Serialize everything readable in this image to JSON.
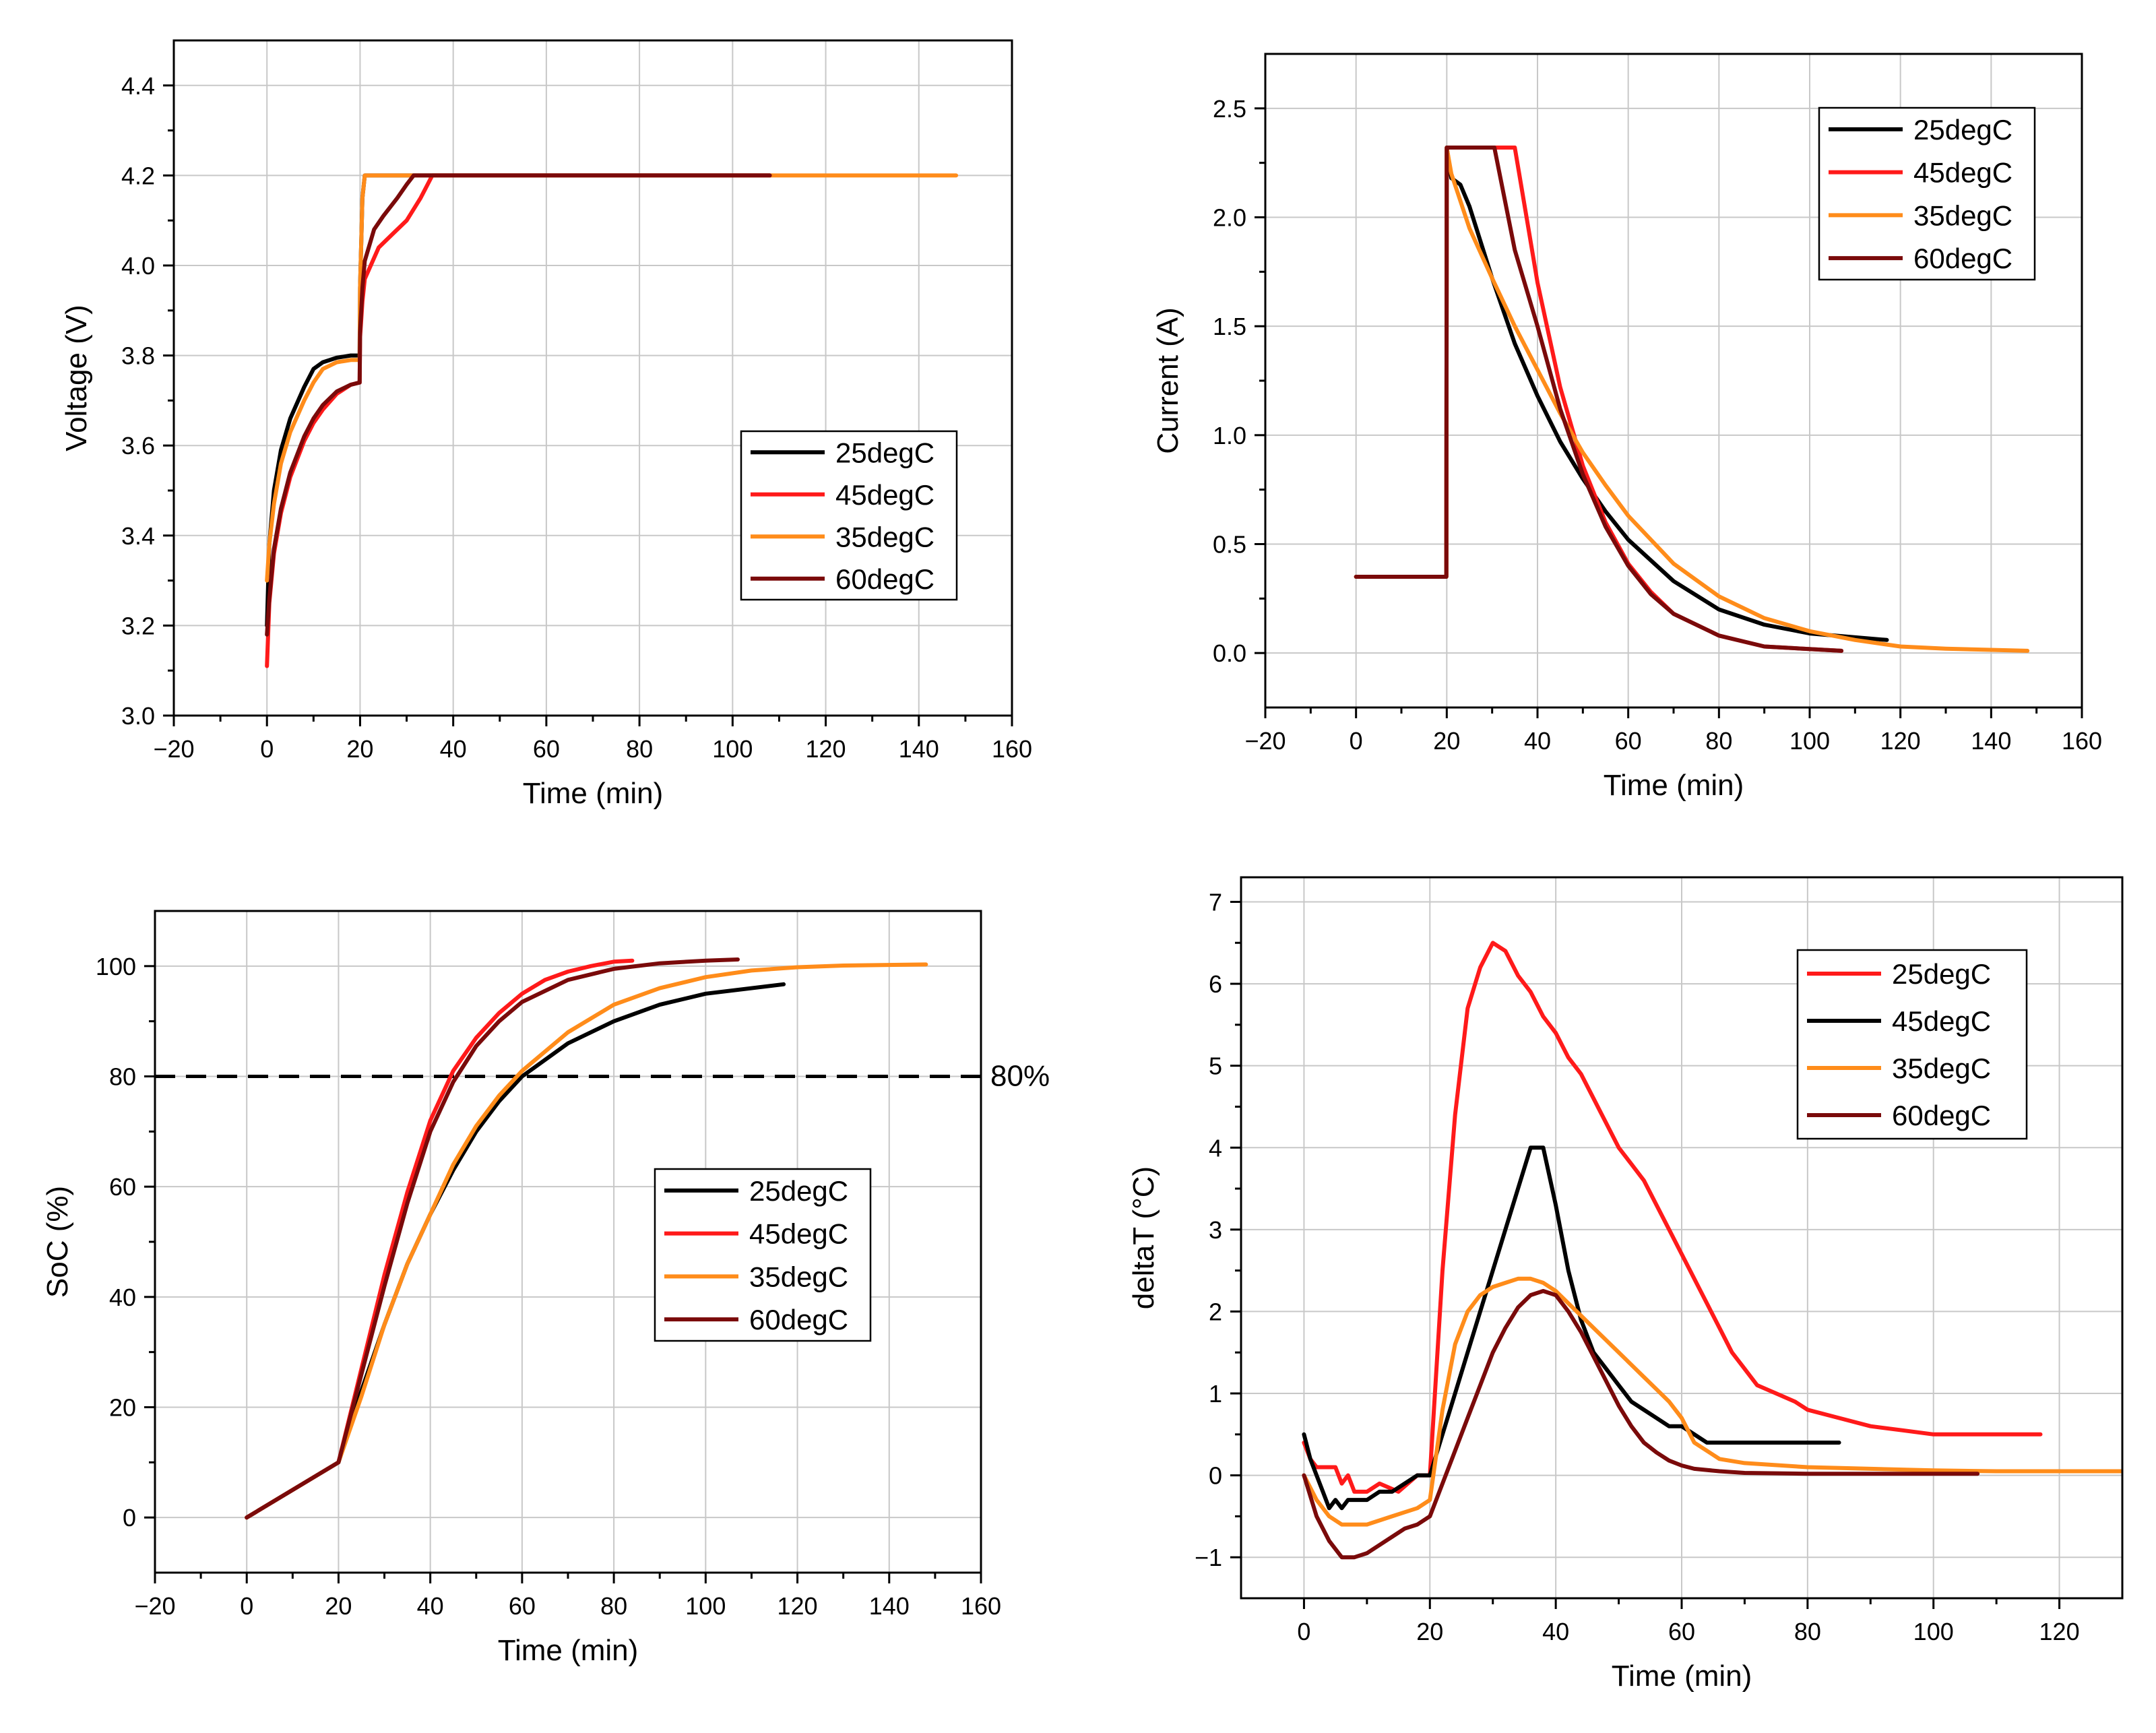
{
  "chart_data": [
    {
      "type": "line",
      "xlabel": "Time (min)",
      "ylabel": "Voltage (V)",
      "xlim": [
        -20,
        160
      ],
      "ylim": [
        3.0,
        4.5
      ],
      "xticks": [
        -20,
        0,
        20,
        40,
        60,
        80,
        100,
        120,
        140,
        160
      ],
      "xtick_labels": [
        "−20",
        "0",
        "20",
        "40",
        "60",
        "80",
        "100",
        "120",
        "140",
        "160"
      ],
      "yticks": [
        3.0,
        3.2,
        3.4,
        3.6,
        3.8,
        4.0,
        4.2,
        4.4
      ],
      "ytick_labels": [
        "3.0",
        "3.2",
        "3.4",
        "3.6",
        "3.8",
        "4.0",
        "4.2",
        "4.4"
      ],
      "grid": true,
      "legend_position": "center-right",
      "series": [
        {
          "name": "25degC",
          "color": "#000000",
          "x": [
            0,
            0.5,
            1.5,
            3,
            5,
            8,
            10,
            12,
            15,
            18,
            19.9,
            20,
            20.5,
            21,
            21.5,
            108
          ],
          "y": [
            3.2,
            3.38,
            3.5,
            3.59,
            3.66,
            3.73,
            3.77,
            3.785,
            3.795,
            3.8,
            3.8,
            3.95,
            4.15,
            4.2,
            4.2,
            4.2
          ]
        },
        {
          "name": "45degC",
          "color": "#ff1a1a",
          "x": [
            0,
            0.5,
            1.5,
            3,
            5,
            8,
            10,
            12,
            15,
            18,
            19.9,
            20,
            20.5,
            21,
            24,
            27,
            30,
            33,
            35.5,
            108
          ],
          "y": [
            3.11,
            3.25,
            3.36,
            3.45,
            3.53,
            3.61,
            3.65,
            3.68,
            3.715,
            3.735,
            3.74,
            3.84,
            3.92,
            3.97,
            4.04,
            4.07,
            4.1,
            4.15,
            4.2,
            4.2
          ]
        },
        {
          "name": "35degC",
          "color": "#ff8c1a",
          "x": [
            0,
            0.5,
            1.5,
            3,
            5,
            8,
            10,
            12,
            15,
            18,
            19.9,
            20,
            20.5,
            21,
            21.5,
            148
          ],
          "y": [
            3.3,
            3.38,
            3.47,
            3.56,
            3.63,
            3.7,
            3.74,
            3.77,
            3.785,
            3.79,
            3.79,
            3.95,
            4.15,
            4.2,
            4.2,
            4.2
          ]
        },
        {
          "name": "60degC",
          "color": "#7a0a0a",
          "x": [
            0,
            0.5,
            1.5,
            3,
            5,
            8,
            10,
            12,
            15,
            18,
            19.9,
            20,
            20.5,
            21,
            23,
            25,
            28,
            30,
            31.5,
            108
          ],
          "y": [
            3.18,
            3.26,
            3.37,
            3.46,
            3.54,
            3.62,
            3.66,
            3.69,
            3.72,
            3.735,
            3.74,
            3.85,
            3.95,
            4.01,
            4.08,
            4.11,
            4.15,
            4.18,
            4.2,
            4.2
          ]
        }
      ]
    },
    {
      "type": "line",
      "xlabel": "Time (min)",
      "ylabel": "Current (A)",
      "xlim": [
        -20,
        160
      ],
      "ylim": [
        -0.25,
        2.75
      ],
      "xticks": [
        -20,
        0,
        20,
        40,
        60,
        80,
        100,
        120,
        140,
        160
      ],
      "xtick_labels": [
        "−20",
        "0",
        "20",
        "40",
        "60",
        "80",
        "100",
        "120",
        "140",
        "160"
      ],
      "yticks": [
        0.0,
        0.5,
        1.0,
        1.5,
        2.0,
        2.5
      ],
      "ytick_labels": [
        "0.0",
        "0.5",
        "1.0",
        "1.5",
        "2.0",
        "2.5"
      ],
      "grid": true,
      "legend_position": "top-right",
      "series": [
        {
          "name": "25degC",
          "color": "#000000",
          "x": [
            0,
            19.9,
            20,
            21,
            23,
            25,
            30,
            35,
            40,
            45,
            50,
            55,
            60,
            70,
            80,
            90,
            100,
            117
          ],
          "y": [
            0.35,
            0.35,
            2.32,
            2.18,
            2.15,
            2.05,
            1.72,
            1.42,
            1.18,
            0.97,
            0.8,
            0.65,
            0.52,
            0.33,
            0.2,
            0.13,
            0.09,
            0.06
          ]
        },
        {
          "name": "45degC",
          "color": "#ff1a1a",
          "x": [
            0,
            19.9,
            20,
            35,
            38,
            40,
            45,
            50,
            55,
            60,
            65,
            70,
            80,
            90,
            107
          ],
          "y": [
            0.35,
            0.35,
            2.32,
            2.32,
            1.95,
            1.7,
            1.22,
            0.86,
            0.6,
            0.41,
            0.28,
            0.18,
            0.08,
            0.03,
            0.01
          ]
        },
        {
          "name": "35degC",
          "color": "#ff8c1a",
          "x": [
            0,
            19.9,
            20,
            21,
            25,
            30,
            35,
            40,
            45,
            50,
            55,
            60,
            70,
            80,
            90,
            100,
            110,
            120,
            130,
            148
          ],
          "y": [
            0.35,
            0.35,
            2.32,
            2.2,
            1.95,
            1.72,
            1.5,
            1.3,
            1.1,
            0.92,
            0.77,
            0.63,
            0.41,
            0.26,
            0.16,
            0.1,
            0.06,
            0.03,
            0.02,
            0.01
          ]
        },
        {
          "name": "60degC",
          "color": "#7a0a0a",
          "x": [
            0,
            19.9,
            20,
            30.5,
            35,
            40,
            45,
            50,
            55,
            60,
            65,
            70,
            80,
            90,
            107
          ],
          "y": [
            0.35,
            0.35,
            2.32,
            2.32,
            1.85,
            1.5,
            1.12,
            0.82,
            0.58,
            0.4,
            0.27,
            0.18,
            0.08,
            0.03,
            0.01
          ]
        }
      ]
    },
    {
      "type": "line",
      "xlabel": "Time (min)",
      "ylabel": "SoC (%)",
      "xlim": [
        -20,
        160
      ],
      "ylim": [
        -10,
        110
      ],
      "xticks": [
        -20,
        0,
        20,
        40,
        60,
        80,
        100,
        120,
        140,
        160
      ],
      "xtick_labels": [
        "−20",
        "0",
        "20",
        "40",
        "60",
        "80",
        "100",
        "120",
        "140",
        "160"
      ],
      "yticks": [
        0,
        20,
        40,
        60,
        80,
        100
      ],
      "ytick_labels": [
        "0",
        "20",
        "40",
        "60",
        "80",
        "100"
      ],
      "grid": true,
      "legend_position": "center-right",
      "reference_line": {
        "y": 80,
        "style": "dashed",
        "label": "80%"
      },
      "series": [
        {
          "name": "25degC",
          "color": "#000000",
          "x": [
            0,
            20,
            25,
            30,
            35,
            40,
            45,
            50,
            55,
            60,
            70,
            80,
            90,
            100,
            117
          ],
          "y": [
            0,
            10,
            23,
            35,
            46,
            55,
            63,
            70,
            75.5,
            80,
            86,
            90,
            93,
            95,
            96.7
          ]
        },
        {
          "name": "45degC",
          "color": "#ff1a1a",
          "x": [
            0,
            20,
            25,
            30,
            35,
            40,
            45,
            50,
            55,
            60,
            65,
            70,
            75,
            80,
            84
          ],
          "y": [
            0,
            10,
            27,
            44,
            59,
            72,
            81,
            87,
            91.5,
            95,
            97.5,
            99,
            100,
            100.8,
            101
          ]
        },
        {
          "name": "35degC",
          "color": "#ff8c1a",
          "x": [
            0,
            20,
            25,
            30,
            35,
            40,
            45,
            50,
            55,
            60,
            70,
            80,
            90,
            100,
            110,
            120,
            130,
            148
          ],
          "y": [
            0,
            10,
            22,
            35,
            46,
            55,
            64,
            71,
            76.5,
            81,
            88,
            93,
            96,
            98,
            99.2,
            99.8,
            100.1,
            100.3
          ]
        },
        {
          "name": "60degC",
          "color": "#7a0a0a",
          "x": [
            0,
            20,
            25,
            30,
            35,
            40,
            45,
            50,
            55,
            60,
            70,
            80,
            90,
            100,
            107
          ],
          "y": [
            0,
            10,
            26,
            42,
            57,
            70,
            79,
            85.5,
            90,
            93.5,
            97.5,
            99.5,
            100.5,
            101,
            101.2
          ]
        }
      ]
    },
    {
      "type": "line",
      "xlabel": "Time (min)",
      "ylabel": "deltaT (°C)",
      "xlim": [
        -10,
        130
      ],
      "ylim": [
        -1.5,
        7.3
      ],
      "xticks": [
        0,
        20,
        40,
        60,
        80,
        100,
        120
      ],
      "xtick_labels": [
        "0",
        "20",
        "40",
        "60",
        "80",
        "100",
        "120"
      ],
      "yticks": [
        -1,
        0,
        1,
        2,
        3,
        4,
        5,
        6,
        7
      ],
      "ytick_labels": [
        "−1",
        "0",
        "1",
        "2",
        "3",
        "4",
        "5",
        "6",
        "7"
      ],
      "grid": true,
      "legend_position": "top-right",
      "series": [
        {
          "name": "25degC",
          "color": "#ff1a1a",
          "x": [
            0,
            1,
            2,
            5,
            6,
            7,
            8,
            10,
            12,
            15,
            18,
            20,
            22,
            24,
            26,
            28,
            30,
            32,
            34,
            36,
            38,
            40,
            42,
            44,
            46,
            48,
            50,
            52,
            54,
            56,
            58,
            60,
            62,
            64,
            66,
            68,
            70,
            72,
            75,
            78,
            80,
            85,
            90,
            95,
            100,
            105,
            110,
            117
          ],
          "y": [
            0.4,
            0.2,
            0.1,
            0.1,
            -0.1,
            0,
            -0.2,
            -0.2,
            -0.1,
            -0.2,
            0,
            0,
            2.5,
            4.4,
            5.7,
            6.2,
            6.5,
            6.4,
            6.1,
            5.9,
            5.6,
            5.4,
            5.1,
            4.9,
            4.6,
            4.3,
            4.0,
            3.8,
            3.6,
            3.3,
            3.0,
            2.7,
            2.4,
            2.1,
            1.8,
            1.5,
            1.3,
            1.1,
            1.0,
            0.9,
            0.8,
            0.7,
            0.6,
            0.55,
            0.5,
            0.5,
            0.5,
            0.5
          ]
        },
        {
          "name": "45degC",
          "color": "#000000",
          "x": [
            0,
            1,
            2,
            3,
            4,
            5,
            6,
            7,
            8,
            10,
            12,
            14,
            16,
            18,
            20,
            22,
            24,
            26,
            28,
            30,
            32,
            34,
            36,
            38,
            40,
            42,
            44,
            46,
            48,
            50,
            52,
            54,
            56,
            58,
            60,
            62,
            64,
            70,
            85
          ],
          "y": [
            0.5,
            0.2,
            0,
            -0.2,
            -0.4,
            -0.3,
            -0.4,
            -0.3,
            -0.3,
            -0.3,
            -0.2,
            -0.2,
            -0.1,
            0,
            0,
            0.5,
            1.0,
            1.5,
            2.0,
            2.5,
            3.0,
            3.5,
            4.0,
            4.0,
            3.3,
            2.5,
            1.9,
            1.5,
            1.3,
            1.1,
            0.9,
            0.8,
            0.7,
            0.6,
            0.6,
            0.5,
            0.4,
            0.4,
            0.4
          ]
        },
        {
          "name": "35degC",
          "color": "#ff8c1a",
          "x": [
            0,
            2,
            4,
            6,
            8,
            10,
            12,
            14,
            16,
            18,
            20,
            22,
            24,
            26,
            28,
            30,
            32,
            34,
            36,
            38,
            40,
            42,
            44,
            46,
            48,
            50,
            52,
            54,
            56,
            58,
            60,
            62,
            64,
            66,
            70,
            80,
            90,
            100,
            110,
            120,
            130
          ],
          "y": [
            0.0,
            -0.3,
            -0.5,
            -0.6,
            -0.6,
            -0.6,
            -0.55,
            -0.5,
            -0.45,
            -0.4,
            -0.3,
            0.8,
            1.6,
            2.0,
            2.2,
            2.3,
            2.35,
            2.4,
            2.4,
            2.35,
            2.25,
            2.1,
            1.95,
            1.8,
            1.65,
            1.5,
            1.35,
            1.2,
            1.05,
            0.9,
            0.7,
            0.4,
            0.3,
            0.2,
            0.15,
            0.1,
            0.08,
            0.06,
            0.05,
            0.05,
            0.05
          ]
        },
        {
          "name": "60degC",
          "color": "#7a0a0a",
          "x": [
            0,
            2,
            4,
            6,
            8,
            10,
            12,
            14,
            16,
            18,
            20,
            22,
            24,
            26,
            28,
            30,
            32,
            34,
            36,
            38,
            40,
            42,
            44,
            46,
            48,
            50,
            52,
            54,
            56,
            58,
            60,
            62,
            66,
            70,
            80,
            90,
            100,
            107
          ],
          "y": [
            0.0,
            -0.5,
            -0.8,
            -1.0,
            -1.0,
            -0.95,
            -0.85,
            -0.75,
            -0.65,
            -0.6,
            -0.5,
            -0.1,
            0.3,
            0.7,
            1.1,
            1.5,
            1.8,
            2.05,
            2.2,
            2.25,
            2.2,
            2.0,
            1.75,
            1.45,
            1.15,
            0.85,
            0.6,
            0.4,
            0.28,
            0.18,
            0.12,
            0.08,
            0.05,
            0.03,
            0.02,
            0.02,
            0.02,
            0.02
          ]
        }
      ]
    }
  ]
}
